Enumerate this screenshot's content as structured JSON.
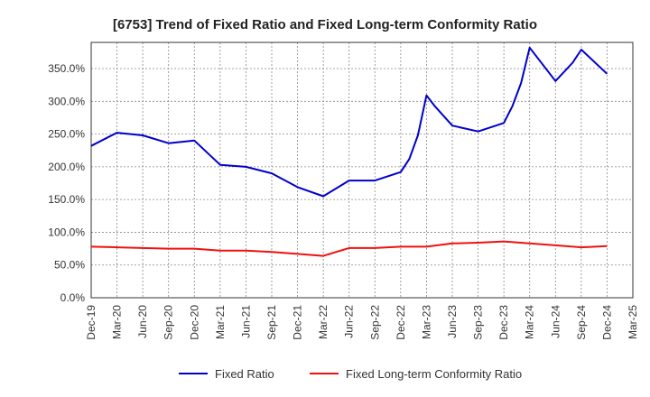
{
  "chart_data": {
    "type": "line",
    "title": "[6753]  Trend of Fixed Ratio and Fixed Long-term Conformity Ratio",
    "xlabel": "",
    "ylabel": "",
    "x_ticks": [
      "Dec-19",
      "Mar-20",
      "Jun-20",
      "Sep-20",
      "Dec-20",
      "Mar-21",
      "Jun-21",
      "Sep-21",
      "Dec-21",
      "Mar-22",
      "Jun-22",
      "Sep-22",
      "Dec-22",
      "Mar-23",
      "Jun-23",
      "Sep-23",
      "Dec-23",
      "Mar-24",
      "Jun-24",
      "Sep-24",
      "Dec-24",
      "Mar-25"
    ],
    "y_ticks": [
      "0.0%",
      "50.0%",
      "100.0%",
      "150.0%",
      "200.0%",
      "250.0%",
      "300.0%",
      "350.0%"
    ],
    "ylim": [
      0,
      390
    ],
    "grid": true,
    "legend_position": "bottom",
    "series": [
      {
        "name": "Fixed Ratio",
        "color": "#0000cc",
        "points": [
          [
            "Dec-19",
            232
          ],
          [
            "Mar-20",
            252
          ],
          [
            "Jun-20",
            248
          ],
          [
            "Sep-20",
            236
          ],
          [
            "Dec-20",
            240
          ],
          [
            "Mar-21",
            203
          ],
          [
            "Jun-21",
            200
          ],
          [
            "Sep-21",
            190
          ],
          [
            "Dec-21",
            169
          ],
          [
            "Mar-22",
            155
          ],
          [
            "Jun-22",
            179
          ],
          [
            "Sep-22",
            179
          ],
          [
            "Dec-22",
            192
          ],
          [
            "Jan-23",
            212
          ],
          [
            "Feb-23",
            248
          ],
          [
            "Mar-23",
            309
          ],
          [
            "Apr-23",
            292
          ],
          [
            "Jun-23",
            263
          ],
          [
            "Sep-23",
            254
          ],
          [
            "Dec-23",
            267
          ],
          [
            "Jan-24",
            293
          ],
          [
            "Feb-24",
            328
          ],
          [
            "Mar-24",
            382
          ],
          [
            "Jun-24",
            331
          ],
          [
            "Aug-24",
            359
          ],
          [
            "Sep-24",
            379
          ],
          [
            "Dec-24",
            342
          ]
        ]
      },
      {
        "name": "Fixed Long-term Conformity Ratio",
        "color": "#ee1111",
        "points": [
          [
            "Dec-19",
            78
          ],
          [
            "Mar-20",
            77
          ],
          [
            "Jun-20",
            76
          ],
          [
            "Sep-20",
            75
          ],
          [
            "Dec-20",
            75
          ],
          [
            "Mar-21",
            72
          ],
          [
            "Jun-21",
            72
          ],
          [
            "Sep-21",
            70
          ],
          [
            "Dec-21",
            67
          ],
          [
            "Mar-22",
            64
          ],
          [
            "Jun-22",
            76
          ],
          [
            "Sep-22",
            76
          ],
          [
            "Dec-22",
            78
          ],
          [
            "Mar-23",
            78
          ],
          [
            "Jun-23",
            83
          ],
          [
            "Sep-23",
            84
          ],
          [
            "Dec-23",
            86
          ],
          [
            "Mar-24",
            83
          ],
          [
            "Jun-24",
            80
          ],
          [
            "Sep-24",
            77
          ],
          [
            "Dec-24",
            79
          ]
        ]
      }
    ]
  }
}
